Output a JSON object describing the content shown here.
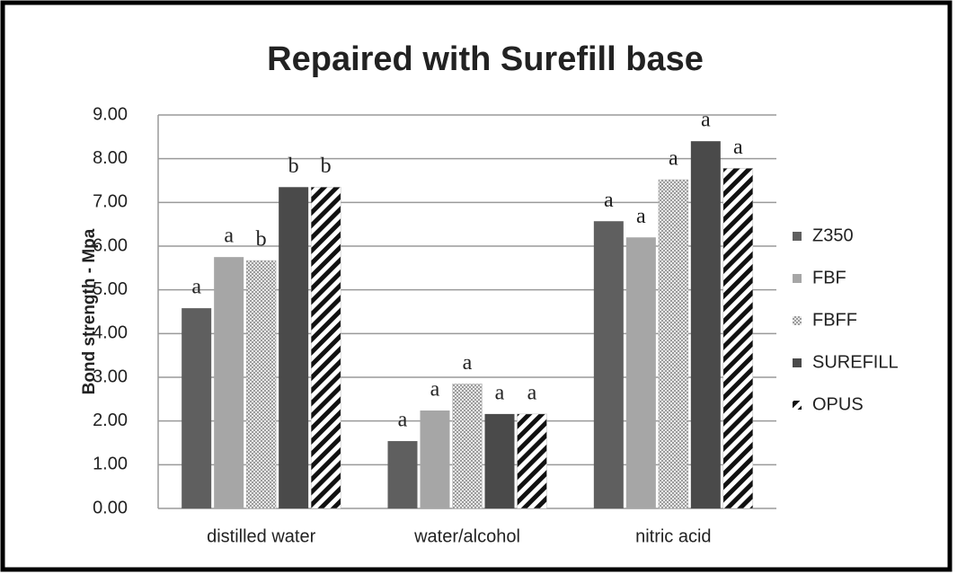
{
  "chart_data": {
    "type": "bar",
    "title": "Repaired with Surefill base",
    "y_label": "Bond strength - Mpa",
    "categories": [
      "distilled water",
      "water/alcohol",
      "nitric acid"
    ],
    "series": [
      {
        "name": "Z350",
        "color": "#5f5f5f",
        "pattern": "solid",
        "values": [
          4.58,
          1.54,
          6.57
        ],
        "annotations": [
          "a",
          "a",
          "a"
        ]
      },
      {
        "name": "FBF",
        "color": "#a6a6a6",
        "pattern": "solid",
        "values": [
          5.75,
          2.24,
          6.2
        ],
        "annotations": [
          "a",
          "a",
          "a"
        ]
      },
      {
        "name": "FBFF",
        "color": "#8c8c8c",
        "pattern": "dots",
        "values": [
          5.67,
          2.85,
          7.52
        ],
        "annotations": [
          "b",
          "a",
          "a"
        ]
      },
      {
        "name": "SUREFILL",
        "color": "#4a4a4a",
        "pattern": "solid",
        "values": [
          7.35,
          2.16,
          8.4
        ],
        "annotations": [
          "b",
          "a",
          "a"
        ]
      },
      {
        "name": "OPUS",
        "color": "#111111",
        "pattern": "diagonal",
        "values": [
          7.35,
          2.16,
          7.78
        ],
        "annotations": [
          "b",
          "a",
          "a"
        ]
      }
    ],
    "ylim": [
      0,
      9
    ],
    "yticks": [
      {
        "value": 0,
        "label": "0.00"
      },
      {
        "value": 1,
        "label": "1.00"
      },
      {
        "value": 2,
        "label": "2.00"
      },
      {
        "value": 3,
        "label": "3.00"
      },
      {
        "value": 4,
        "label": "4.00"
      },
      {
        "value": 5,
        "label": "5.00"
      },
      {
        "value": 6,
        "label": "6.00"
      },
      {
        "value": 7,
        "label": "7.00"
      },
      {
        "value": 8,
        "label": "8.00"
      },
      {
        "value": 9,
        "label": "9.00"
      }
    ],
    "grid": true,
    "legend": "right"
  }
}
